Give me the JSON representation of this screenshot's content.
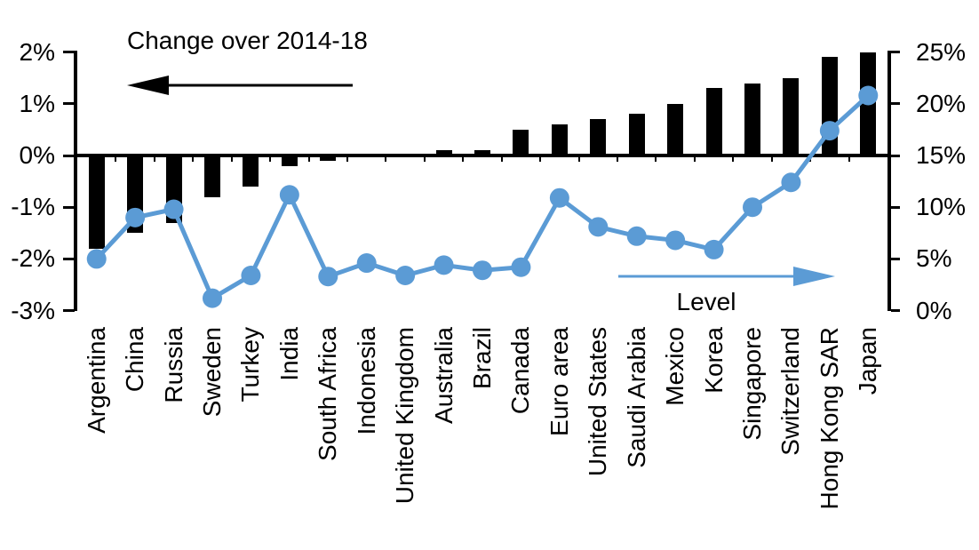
{
  "chart_data": {
    "type": "bar+line-dual-axis",
    "title": "Change over 2014-18",
    "categories": [
      "Argentina",
      "China",
      "Russia",
      "Sweden",
      "Turkey",
      "India",
      "South Africa",
      "Indonesia",
      "United Kingdom",
      "Australia",
      "Brazil",
      "Canada",
      "Euro area",
      "United States",
      "Saudi Arabia",
      "Mexico",
      "Korea",
      "Singapore",
      "Switzerland",
      "Hong Kong SAR",
      "Japan"
    ],
    "series": [
      {
        "name": "Change over 2014-18",
        "type": "bar",
        "axis": "left",
        "color": "#000000",
        "unit": "%",
        "values": [
          -1.8,
          -1.5,
          -1.3,
          -0.8,
          -0.6,
          -0.2,
          -0.1,
          0,
          0,
          0.1,
          0.1,
          0.5,
          0.6,
          0.7,
          0.8,
          1.0,
          1.3,
          1.4,
          1.5,
          1.9,
          2.0
        ]
      },
      {
        "name": "Level",
        "type": "line",
        "axis": "right",
        "color": "#5B9BD5",
        "unit": "%",
        "values": [
          5.0,
          9.0,
          9.8,
          1.2,
          3.4,
          11.2,
          3.3,
          4.6,
          3.4,
          4.4,
          3.9,
          4.2,
          10.9,
          8.1,
          7.2,
          6.8,
          5.9,
          10.0,
          12.4,
          17.4,
          20.8
        ]
      }
    ],
    "left_axis": {
      "min": -3,
      "max": 2,
      "ticks": [
        "2%",
        "1%",
        "0%",
        "-1%",
        "-2%",
        "-3%"
      ]
    },
    "right_axis": {
      "min": 0,
      "max": 25,
      "ticks": [
        "25%",
        "20%",
        "15%",
        "10%",
        "5%",
        "0%"
      ]
    },
    "axis_alignment": "left 0% aligns with right 15%; 1 left unit = 5 right units",
    "grid": false,
    "legend_position": "none (arrows point to the axis each series is read on)"
  },
  "annotations": {
    "left_arrow_label": "Change over 2014-18",
    "right_arrow_label": "Level"
  },
  "colors": {
    "bar": "#000000",
    "line": "#5B9BD5",
    "text": "#000000",
    "background": "#FFFFFF"
  }
}
